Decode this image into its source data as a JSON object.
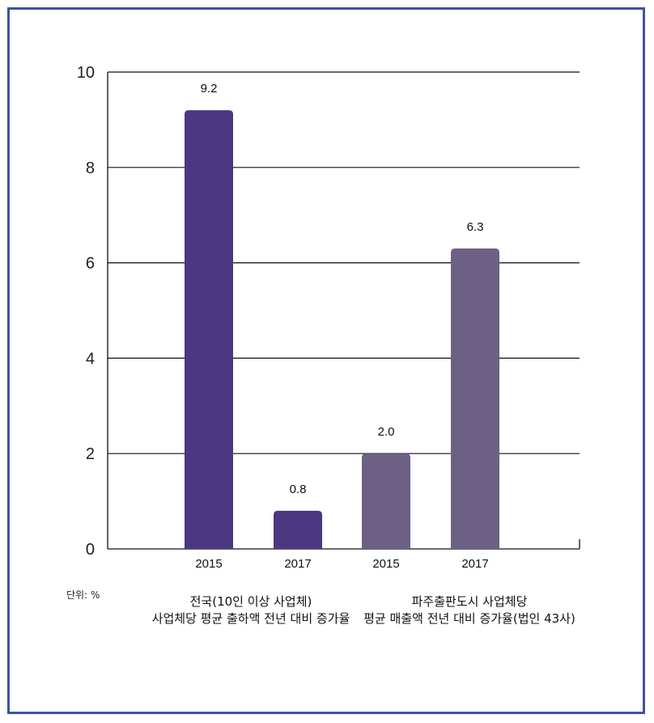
{
  "chart_data": {
    "type": "bar",
    "ylim": [
      0,
      10
    ],
    "yticks": [
      "0",
      "2",
      "4",
      "6",
      "8",
      "10"
    ],
    "unit_label": "단위: %",
    "categories": [
      "2015",
      "2017",
      "2015",
      "2017"
    ],
    "values": [
      9.2,
      0.8,
      2.0,
      6.3
    ],
    "value_labels": [
      "9.2",
      "0.8",
      "2.0",
      "6.3"
    ],
    "bar_colors": [
      "#4b3782",
      "#4b3782",
      "#6c6185",
      "#6c6185"
    ],
    "groups": [
      {
        "line1": "전국(10인 이상 사업체)",
        "line2": "사업체당 평균 출하액 전년 대비 증가율"
      },
      {
        "line1": "파주출판도시 사업체당",
        "line2": "평균 매출액 전년 대비 증가율(법인 43사)"
      }
    ],
    "grid": true
  }
}
